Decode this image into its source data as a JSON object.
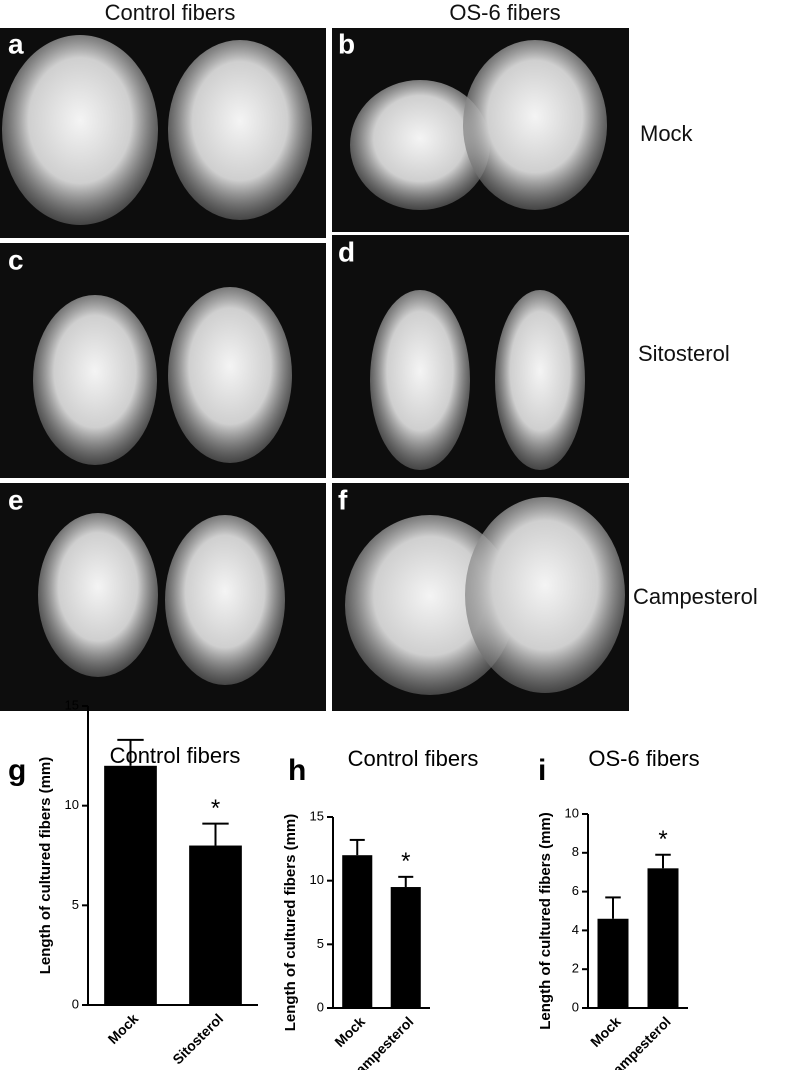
{
  "headers": [
    "Control  fibers",
    "OS-6 fibers"
  ],
  "photos": [
    {
      "label": "a"
    },
    {
      "label": "b"
    },
    {
      "label": "c"
    },
    {
      "label": "d"
    },
    {
      "label": "e"
    },
    {
      "label": "f"
    }
  ],
  "row_labels": [
    "Mock",
    "Sitosterol",
    "Campesterol"
  ],
  "chart_data": [
    {
      "type": "bar",
      "panel": "g",
      "title": "Control fibers",
      "ylabel": "Length of cultured fibers (mm)",
      "categories": [
        "Mock",
        "Sitosterol"
      ],
      "values": [
        12,
        8
      ],
      "errors": [
        1.3,
        1.1
      ],
      "color": "#000000",
      "ylim": [
        0,
        15
      ],
      "yticks": [
        0,
        5,
        10,
        15
      ],
      "annotations": [
        {
          "category": "Sitosterol",
          "text": "*"
        }
      ]
    },
    {
      "type": "bar",
      "panel": "h",
      "title": "Control fibers",
      "ylabel": "Length of cultured fibers (mm)",
      "categories": [
        "Mock",
        "Campesterol"
      ],
      "values": [
        12,
        9.5
      ],
      "errors": [
        1.2,
        0.8
      ],
      "color": "#000000",
      "ylim": [
        0,
        15
      ],
      "yticks": [
        0,
        5,
        10,
        15
      ],
      "annotations": [
        {
          "category": "Campesterol",
          "text": "*"
        }
      ]
    },
    {
      "type": "bar",
      "panel": "i",
      "title": "OS-6 fibers",
      "ylabel": "Length of cultured fibers (mm)",
      "categories": [
        "Mock",
        "Campesterol"
      ],
      "values": [
        4.6,
        7.2
      ],
      "errors": [
        1.1,
        0.7
      ],
      "color": "#000000",
      "ylim": [
        0,
        10
      ],
      "yticks": [
        0,
        2,
        4,
        6,
        8,
        10
      ],
      "annotations": [
        {
          "category": "Campesterol",
          "text": "*"
        }
      ]
    }
  ]
}
